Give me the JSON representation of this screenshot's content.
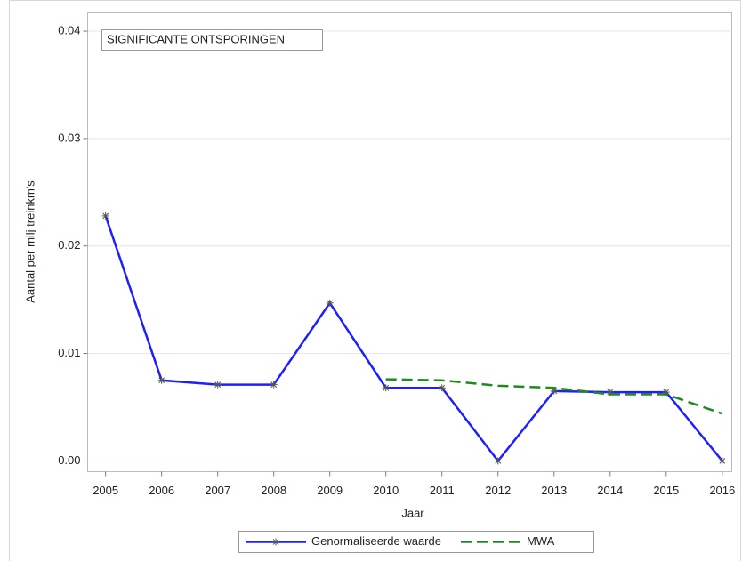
{
  "chart_data": {
    "type": "line",
    "annotation": "SIGNIFICANTE ONTSPORINGEN",
    "xlabel": "Jaar",
    "ylabel": "Aantal per milj treinkm's",
    "x": [
      2005,
      2006,
      2007,
      2008,
      2009,
      2010,
      2011,
      2012,
      2013,
      2014,
      2015,
      2016
    ],
    "series": [
      {
        "name": "Genormaliseerde waarde",
        "color": "#1e1eff",
        "line_style": "solid",
        "marker": "star",
        "values": [
          0.0228,
          0.0075,
          0.0071,
          0.0071,
          0.0147,
          0.0068,
          0.0068,
          0,
          0.0065,
          0.0064,
          0.0064,
          0
        ]
      },
      {
        "name": "MWA",
        "color": "#1f8a1f",
        "line_style": "dashed",
        "marker": "none",
        "values": [
          null,
          null,
          null,
          null,
          null,
          0.0076,
          0.0075,
          0.007,
          0.0068,
          0.0062,
          0.0062,
          0.0044
        ]
      }
    ],
    "xlim": [
      2004.68,
      2016.17
    ],
    "xticks": [
      2005,
      2006,
      2007,
      2008,
      2009,
      2010,
      2011,
      2012,
      2013,
      2014,
      2015,
      2016
    ],
    "ylim": [
      -0.001,
      0.0417
    ],
    "yticks": [
      {
        "value": 0,
        "label": "0.00"
      },
      {
        "value": 0.01,
        "label": "0.01"
      },
      {
        "value": 0.02,
        "label": "0.02"
      },
      {
        "value": 0.03,
        "label": "0.03"
      },
      {
        "value": 0.04,
        "label": "0.04"
      }
    ],
    "grid": true
  }
}
